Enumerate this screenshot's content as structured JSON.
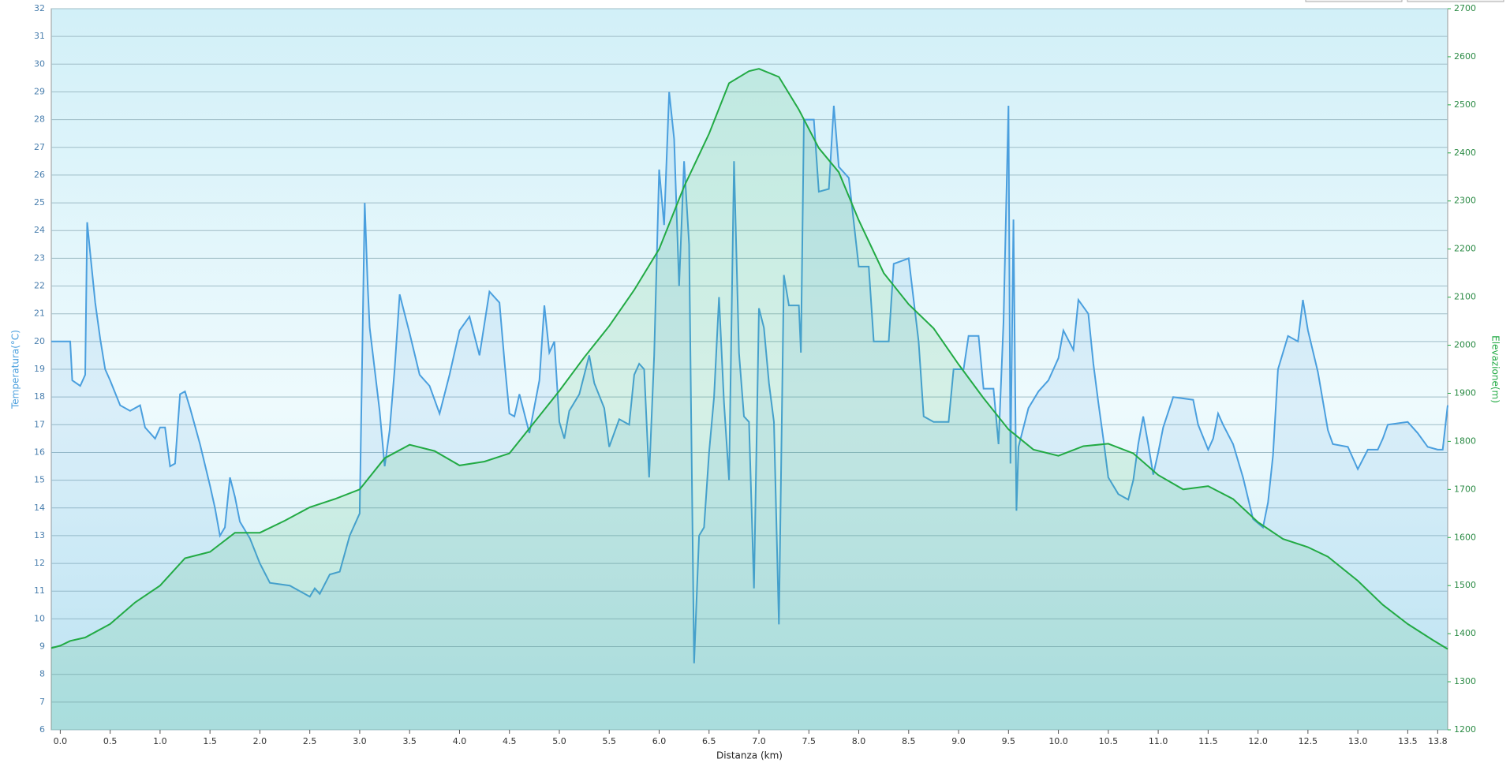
{
  "chart_data": {
    "type": "line",
    "x_label": "Distanza  (km)",
    "y_label": "Temperatura(°C)",
    "y2_label": "Elevazione(m)",
    "xlim": [
      -0.09,
      13.9
    ],
    "xticks": [
      {
        "value": 0,
        "label": "0.0"
      },
      0.5,
      {
        "value": 1,
        "label": "1.0"
      },
      1.5,
      {
        "value": 2,
        "label": "2.0"
      },
      2.5,
      {
        "value": 3,
        "label": "3.0"
      },
      3.5,
      {
        "value": 4,
        "label": "4.0"
      },
      4.5,
      {
        "value": 5,
        "label": "5.0"
      },
      5.5,
      {
        "value": 6,
        "label": "6.0"
      },
      6.5,
      {
        "value": 7,
        "label": "7.0"
      },
      7.5,
      {
        "value": 8,
        "label": "8.0"
      },
      8.5,
      {
        "value": 9,
        "label": "9.0"
      },
      9.5,
      {
        "value": 10,
        "label": "10.0"
      },
      10.5,
      {
        "value": 11,
        "label": "11.0"
      },
      11.5,
      {
        "value": 12,
        "label": "12.0"
      },
      12.5,
      {
        "value": 13,
        "label": "13.0"
      },
      13.5,
      13.8
    ],
    "ylim": [
      6,
      32
    ],
    "yticks": [
      6,
      7,
      8,
      9,
      10,
      11,
      12,
      13,
      14,
      15,
      16,
      17,
      18,
      19,
      20,
      21,
      22,
      23,
      24,
      25,
      26,
      27,
      28,
      29,
      30,
      31,
      32
    ],
    "y2lim": [
      1200,
      2700
    ],
    "y2ticks": [
      1200,
      1300,
      1400,
      1500,
      1600,
      1700,
      1800,
      1900,
      2000,
      2100,
      2200,
      2300,
      2400,
      2500,
      2600,
      2700
    ],
    "grid": true,
    "series": [
      {
        "name": "Temperatura",
        "color": "#4a9fde",
        "x": [
          -0.09,
          0.1,
          0.12,
          0.2,
          0.25,
          0.27,
          0.3,
          0.35,
          0.4,
          0.45,
          0.5,
          0.6,
          0.7,
          0.8,
          0.85,
          0.95,
          1.0,
          1.05,
          1.1,
          1.15,
          1.2,
          1.25,
          1.3,
          1.4,
          1.5,
          1.55,
          1.6,
          1.65,
          1.7,
          1.75,
          1.8,
          1.9,
          2.0,
          2.1,
          2.3,
          2.4,
          2.5,
          2.55,
          2.6,
          2.7,
          2.8,
          2.9,
          3.0,
          3.05,
          3.08,
          3.1,
          3.2,
          3.25,
          3.3,
          3.35,
          3.4,
          3.5,
          3.6,
          3.7,
          3.8,
          3.9,
          4.0,
          4.1,
          4.2,
          4.3,
          4.4,
          4.45,
          4.5,
          4.55,
          4.6,
          4.7,
          4.8,
          4.85,
          4.9,
          4.95,
          5.0,
          5.05,
          5.1,
          5.2,
          5.3,
          5.35,
          5.45,
          5.5,
          5.6,
          5.7,
          5.75,
          5.8,
          5.85,
          5.9,
          5.95,
          6.0,
          6.05,
          6.1,
          6.15,
          6.2,
          6.25,
          6.3,
          6.35,
          6.4,
          6.45,
          6.5,
          6.55,
          6.6,
          6.65,
          6.7,
          6.75,
          6.8,
          6.85,
          6.9,
          6.95,
          7.0,
          7.05,
          7.1,
          7.15,
          7.2,
          7.25,
          7.3,
          7.4,
          7.42,
          7.45,
          7.55,
          7.6,
          7.7,
          7.75,
          7.8,
          7.9,
          8.0,
          8.1,
          8.15,
          8.3,
          8.35,
          8.5,
          8.6,
          8.65,
          8.75,
          8.9,
          8.95,
          9.05,
          9.1,
          9.2,
          9.25,
          9.35,
          9.4,
          9.45,
          9.5,
          9.52,
          9.55,
          9.58,
          9.6,
          9.7,
          9.8,
          9.9,
          10.0,
          10.05,
          10.15,
          10.2,
          10.3,
          10.35,
          10.4,
          10.45,
          10.5,
          10.6,
          10.7,
          10.75,
          10.8,
          10.85,
          10.9,
          10.95,
          11.0,
          11.05,
          11.15,
          11.35,
          11.4,
          11.5,
          11.55,
          11.6,
          11.65,
          11.75,
          11.85,
          11.95,
          12.05,
          12.1,
          12.15,
          12.2,
          12.3,
          12.4,
          12.45,
          12.5,
          12.6,
          12.7,
          12.75,
          12.9,
          13.0,
          13.1,
          13.2,
          13.25,
          13.3,
          13.5,
          13.6,
          13.7,
          13.8,
          13.85,
          13.9
        ],
        "values": [
          20,
          20,
          18.6,
          18.4,
          18.8,
          24.3,
          23.2,
          21.4,
          20.1,
          19,
          18.6,
          17.7,
          17.5,
          17.7,
          16.9,
          16.5,
          16.9,
          16.9,
          15.5,
          15.6,
          18.1,
          18.2,
          17.6,
          16.3,
          14.8,
          14,
          13,
          13.3,
          15.1,
          14.4,
          13.5,
          12.9,
          12,
          11.3,
          11.2,
          11,
          10.8,
          11.1,
          10.9,
          11.6,
          11.7,
          13,
          13.8,
          25,
          22,
          20.5,
          17.5,
          15.5,
          16.8,
          19,
          21.7,
          20.3,
          18.8,
          18.4,
          17.4,
          18.8,
          20.4,
          20.9,
          19.5,
          21.8,
          21.4,
          19.3,
          17.4,
          17.3,
          18.1,
          16.7,
          18.6,
          21.3,
          19.6,
          20,
          17.1,
          16.5,
          17.5,
          18.1,
          19.5,
          18.5,
          17.6,
          16.2,
          17.2,
          17,
          18.8,
          19.2,
          19,
          15.1,
          19.5,
          26.2,
          24.2,
          29,
          27.3,
          22,
          26.5,
          23.5,
          8.4,
          13,
          13.3,
          16,
          18,
          21.6,
          17.8,
          15,
          26.5,
          19.6,
          17.3,
          17.1,
          11.1,
          21.2,
          20.5,
          18.5,
          17.1,
          9.8,
          22.4,
          21.3,
          21.3,
          19.6,
          28,
          28,
          25.4,
          25.5,
          28.5,
          26.3,
          25.9,
          22.7,
          22.7,
          20,
          20,
          22.8,
          23,
          20,
          17.3,
          17.1,
          17.1,
          19,
          19,
          20.2,
          20.2,
          18.3,
          18.3,
          16.3,
          20.7,
          28.5,
          15.6,
          24.4,
          13.9,
          16.2,
          17.6,
          18.2,
          18.6,
          19.4,
          20.4,
          19.7,
          21.5,
          21,
          19.2,
          17.8,
          16.5,
          15.1,
          14.5,
          14.3,
          15,
          16.3,
          17.3,
          16.3,
          15.2,
          16,
          16.9,
          18,
          17.9,
          17,
          16.1,
          16.5,
          17.4,
          17,
          16.3,
          15.1,
          13.6,
          13.3,
          14.2,
          15.9,
          19,
          20.2,
          20,
          21.5,
          20.4,
          18.9,
          16.8,
          16.3,
          16.2,
          15.4,
          16.1,
          16.1,
          16.5,
          17,
          17.1,
          16.7,
          16.2,
          16.1,
          16.1,
          17.7
        ]
      },
      {
        "name": "Elevazione",
        "color": "#22aa44",
        "axis": "y2",
        "x": [
          -0.09,
          0,
          0.1,
          0.25,
          0.5,
          0.75,
          1,
          1.25,
          1.5,
          1.75,
          2,
          2.25,
          2.5,
          2.75,
          3,
          3.25,
          3.5,
          3.75,
          4,
          4.25,
          4.5,
          4.75,
          5,
          5.25,
          5.5,
          5.75,
          6,
          6.25,
          6.5,
          6.7,
          6.9,
          7,
          7.2,
          7.4,
          7.6,
          7.8,
          8,
          8.25,
          8.5,
          8.75,
          9,
          9.25,
          9.5,
          9.75,
          10,
          10.25,
          10.5,
          10.75,
          11,
          11.25,
          11.5,
          11.75,
          12,
          12.25,
          12.5,
          12.7,
          13,
          13.25,
          13.5,
          13.75,
          13.9
        ],
        "values": [
          1370,
          1375,
          1385,
          1392,
          1420,
          1465,
          1500,
          1557,
          1570,
          1610,
          1610,
          1635,
          1663,
          1680,
          1700,
          1765,
          1793,
          1780,
          1750,
          1758,
          1775,
          1840,
          1905,
          1975,
          2040,
          2115,
          2200,
          2330,
          2440,
          2545,
          2570,
          2575,
          2558,
          2490,
          2410,
          2360,
          2260,
          2150,
          2085,
          2035,
          1960,
          1890,
          1825,
          1783,
          1770,
          1790,
          1795,
          1775,
          1730,
          1700,
          1707,
          1680,
          1632,
          1597,
          1580,
          1560,
          1510,
          1460,
          1420,
          1387,
          1368
        ]
      }
    ]
  }
}
